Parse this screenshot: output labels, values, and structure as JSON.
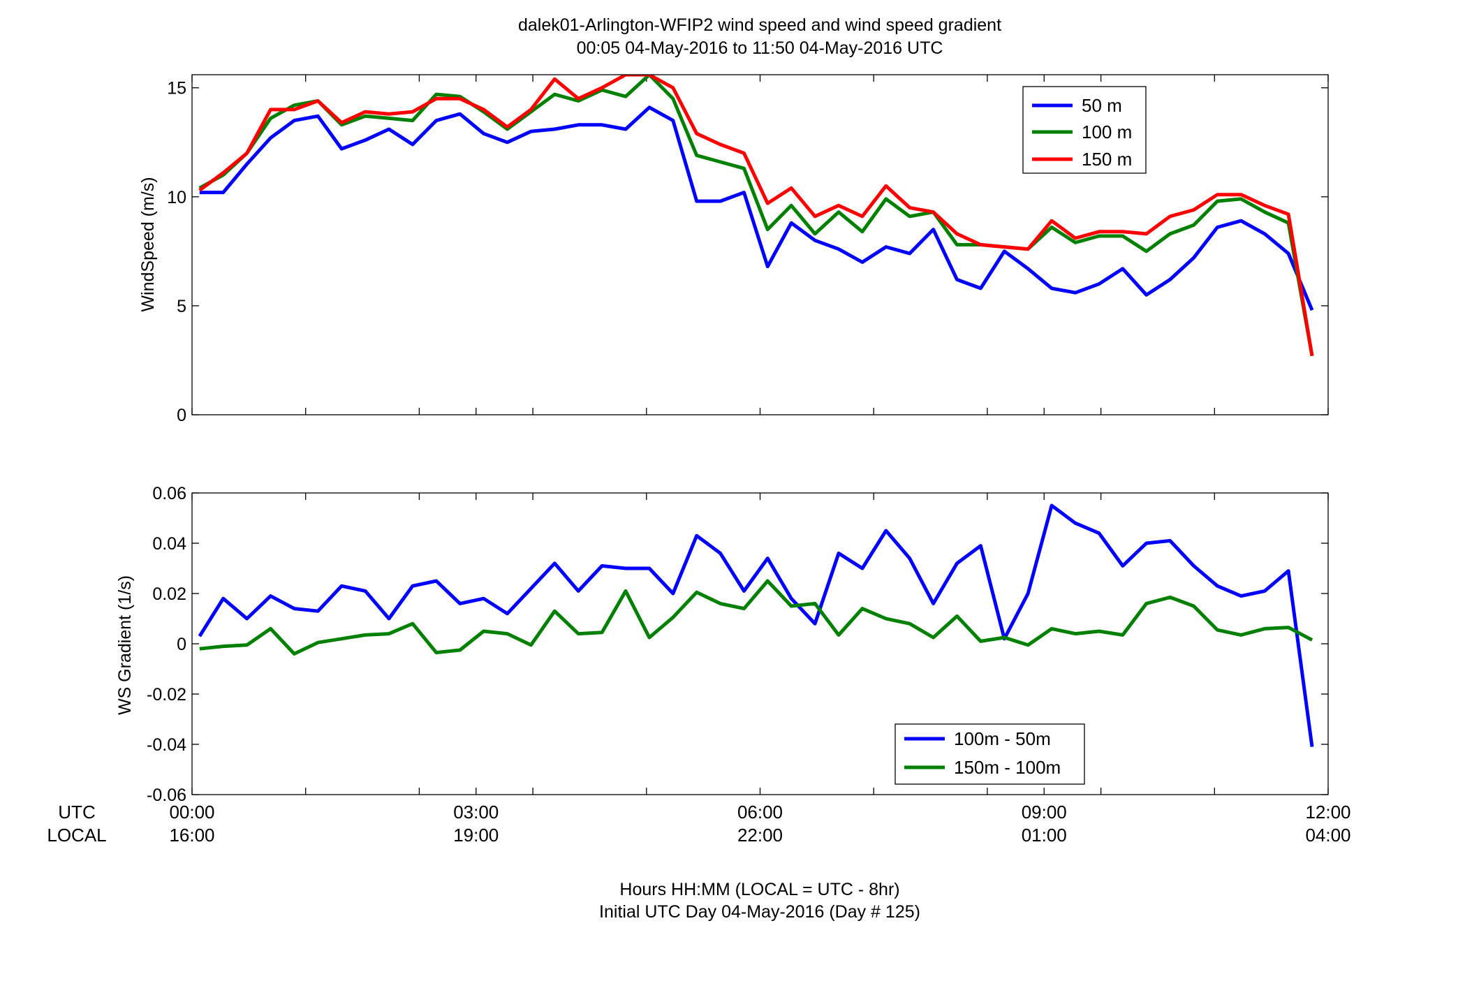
{
  "title_line1": "dalek01-Arlington-WFIP2  wind speed and wind speed gradient",
  "title_line2": "00:05 04-May-2016 to 11:50 04-May-2016  UTC",
  "xlabel_line1": "Hours HH:MM  (LOCAL = UTC - 8hr)",
  "xlabel_line2": "Initial UTC Day 04-May-2016 (Day # 125)",
  "row_label_utc": "UTC",
  "row_label_local": "LOCAL",
  "chart_data": [
    {
      "type": "line",
      "ylabel": "WindSpeed (m/s)",
      "xlim": [
        0,
        12
      ],
      "ylim": [
        0,
        15.6
      ],
      "yticks": [
        0,
        5,
        10,
        15
      ],
      "ytick_labels": [
        "0",
        "5",
        "10",
        "15"
      ],
      "xticks": [
        0,
        1.2,
        2.4,
        3,
        3.6,
        4.8,
        6,
        7.2,
        8.4,
        9,
        9.6,
        10.8,
        12
      ],
      "xtick_labels_utc": [
        "00:00",
        "",
        "",
        "03:00",
        "",
        "",
        "06:00",
        "",
        "",
        "09:00",
        "",
        "",
        "12:00"
      ],
      "xtick_labels_local": [
        "16:00",
        "",
        "",
        "19:00",
        "",
        "",
        "22:00",
        "",
        "",
        "01:00",
        "",
        "",
        "04:00"
      ],
      "legend_position": "top-right",
      "grid": false,
      "x": [
        0.08,
        0.33,
        0.58,
        0.83,
        1.08,
        1.33,
        1.58,
        1.83,
        2.08,
        2.33,
        2.58,
        2.83,
        3.08,
        3.33,
        3.58,
        3.83,
        4.08,
        4.33,
        4.58,
        4.83,
        5.08,
        5.33,
        5.58,
        5.83,
        6.08,
        6.33,
        6.58,
        6.83,
        7.08,
        7.33,
        7.58,
        7.83,
        8.08,
        8.33,
        8.58,
        8.83,
        9.08,
        9.33,
        9.58,
        9.83,
        10.08,
        10.33,
        10.58,
        10.83,
        11.08,
        11.33,
        11.58,
        11.83
      ],
      "series": [
        {
          "name": "50 m",
          "color": "#0000ff",
          "values": [
            10.2,
            10.2,
            11.5,
            12.7,
            13.5,
            13.7,
            12.2,
            12.6,
            13.1,
            12.4,
            13.5,
            13.8,
            12.9,
            12.5,
            13.0,
            13.1,
            13.3,
            13.3,
            13.1,
            14.1,
            13.5,
            9.8,
            9.8,
            10.2,
            6.8,
            8.8,
            8.0,
            7.6,
            7.0,
            7.7,
            7.4,
            8.5,
            6.2,
            5.8,
            7.5,
            6.7,
            5.8,
            5.6,
            6.0,
            6.7,
            5.5,
            6.2,
            7.2,
            8.6,
            8.9,
            8.3,
            7.4,
            4.8
          ]
        },
        {
          "name": "100 m",
          "color": "#008000",
          "values": [
            10.4,
            11.0,
            12.0,
            13.6,
            14.2,
            14.4,
            13.3,
            13.7,
            13.6,
            13.5,
            14.7,
            14.6,
            13.9,
            13.1,
            13.9,
            14.7,
            14.4,
            14.9,
            14.6,
            15.6,
            14.5,
            11.9,
            11.6,
            11.3,
            8.5,
            9.6,
            8.3,
            9.3,
            8.4,
            9.9,
            9.1,
            9.3,
            7.8,
            7.8,
            7.7,
            7.6,
            8.6,
            7.9,
            8.2,
            8.2,
            7.5,
            8.3,
            8.7,
            9.8,
            9.9,
            9.3,
            8.8,
            2.7
          ]
        },
        {
          "name": "150 m",
          "color": "#ff0000",
          "values": [
            10.3,
            11.1,
            12.0,
            14.0,
            14.0,
            14.4,
            13.4,
            13.9,
            13.8,
            13.9,
            14.5,
            14.5,
            14.0,
            13.2,
            14.0,
            15.4,
            14.5,
            15.0,
            15.6,
            15.6,
            15.0,
            12.9,
            12.4,
            12.0,
            9.7,
            10.4,
            9.1,
            9.6,
            9.1,
            10.5,
            9.5,
            9.3,
            8.3,
            7.8,
            7.7,
            7.6,
            8.9,
            8.1,
            8.4,
            8.4,
            8.3,
            9.1,
            9.4,
            10.1,
            10.1,
            9.6,
            9.2,
            2.7
          ]
        }
      ]
    },
    {
      "type": "line",
      "ylabel": "WS Gradient (1/s)",
      "xlim": [
        0,
        12
      ],
      "ylim": [
        -0.06,
        0.06
      ],
      "yticks": [
        -0.06,
        -0.04,
        -0.02,
        0,
        0.02,
        0.04,
        0.06
      ],
      "ytick_labels": [
        "-0.06",
        "-0.04",
        "-0.02",
        "0",
        "0.02",
        "0.04",
        "0.06"
      ],
      "xticks": [
        0,
        1.2,
        2.4,
        3,
        3.6,
        4.8,
        6,
        7.2,
        8.4,
        9,
        9.6,
        10.8,
        12
      ],
      "legend_position": "bottom-right",
      "grid": false,
      "x": [
        0.08,
        0.33,
        0.58,
        0.83,
        1.08,
        1.33,
        1.58,
        1.83,
        2.08,
        2.33,
        2.58,
        2.83,
        3.08,
        3.33,
        3.58,
        3.83,
        4.08,
        4.33,
        4.58,
        4.83,
        5.08,
        5.33,
        5.58,
        5.83,
        6.08,
        6.33,
        6.58,
        6.83,
        7.08,
        7.33,
        7.58,
        7.83,
        8.08,
        8.33,
        8.58,
        8.83,
        9.08,
        9.33,
        9.58,
        9.83,
        10.08,
        10.33,
        10.58,
        10.83,
        11.08,
        11.33,
        11.58,
        11.83
      ],
      "series": [
        {
          "name": "100m - 50m",
          "color": "#0000ff",
          "values": [
            0.003,
            0.018,
            0.01,
            0.019,
            0.014,
            0.013,
            0.023,
            0.021,
            0.01,
            0.023,
            0.025,
            0.016,
            0.018,
            0.012,
            0.022,
            0.032,
            0.021,
            0.031,
            0.03,
            0.03,
            0.02,
            0.043,
            0.036,
            0.021,
            0.034,
            0.018,
            0.008,
            0.036,
            0.03,
            0.045,
            0.034,
            0.016,
            0.032,
            0.039,
            0.002,
            0.02,
            0.055,
            0.048,
            0.044,
            0.031,
            0.04,
            0.041,
            0.031,
            0.023,
            0.019,
            0.021,
            0.029,
            -0.041
          ]
        },
        {
          "name": "150m - 100m",
          "color": "#008000",
          "values": [
            -0.002,
            -0.001,
            -0.0005,
            0.006,
            -0.004,
            0.0005,
            0.002,
            0.0035,
            0.004,
            0.008,
            -0.0035,
            -0.0025,
            0.005,
            0.004,
            -0.0005,
            0.013,
            0.004,
            0.0045,
            0.021,
            0.0025,
            0.0105,
            0.0205,
            0.016,
            0.014,
            0.025,
            0.015,
            0.016,
            0.0035,
            0.014,
            0.01,
            0.008,
            0.0025,
            0.011,
            0.001,
            0.0025,
            -0.0005,
            0.006,
            0.004,
            0.005,
            0.0035,
            0.016,
            0.0185,
            0.015,
            0.0055,
            0.0035,
            0.006,
            0.0065,
            0.0015
          ]
        }
      ]
    }
  ]
}
